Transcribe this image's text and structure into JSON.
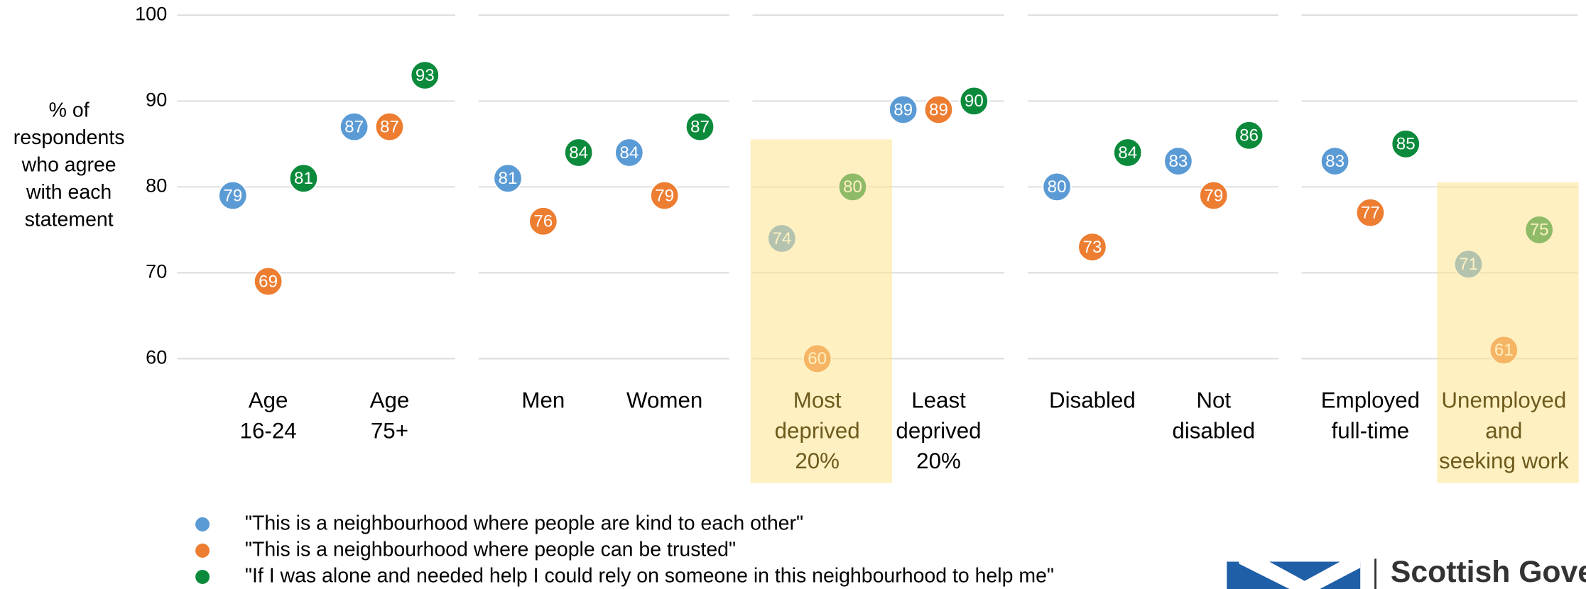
{
  "chart_data": {
    "type": "dot",
    "y_label": "% of\nrespondents\nwho agree\nwith each\nstatement",
    "categories": [
      "Age\n16-24",
      "Age\n75+",
      "Men",
      "Women",
      "Most\ndeprived\n20%",
      "Least\ndeprived\n20%",
      "Disabled",
      "Not\ndisabled",
      "Employed\nfull-time",
      "Unemployed\nand\nseeking work"
    ],
    "series": [
      {
        "name": "\"This is a neighbourhood where people are kind to each other\"",
        "color": "#5b9bd5",
        "values": [
          79,
          87,
          81,
          84,
          74,
          89,
          80,
          83,
          83,
          71
        ]
      },
      {
        "name": "\"This is a neighbourhood where people can be trusted\"",
        "color": "#ed7d31",
        "values": [
          69,
          87,
          76,
          79,
          60,
          89,
          73,
          79,
          77,
          61
        ]
      },
      {
        "name": "\"If I was alone and needed help I could rely on someone in this neighbourhood to help me\"",
        "color": "#0b8a3b",
        "values": [
          81,
          93,
          84,
          87,
          80,
          90,
          84,
          86,
          85,
          75
        ]
      }
    ],
    "highlight": [
      4,
      9
    ],
    "highlight_color": "#fde38e",
    "ylim": [
      60,
      100
    ],
    "yticks": [
      60,
      70,
      80,
      90,
      100
    ],
    "grid": true,
    "logo": "Scottish Government"
  }
}
